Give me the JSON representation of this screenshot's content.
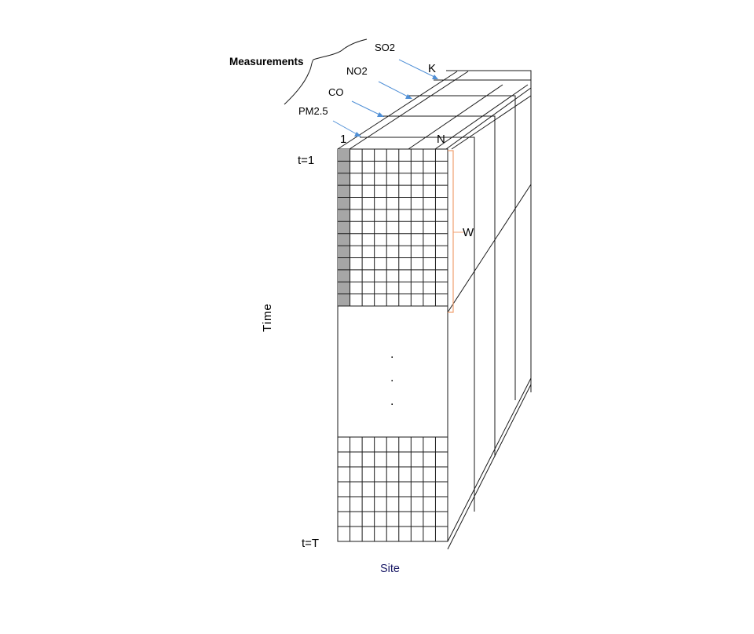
{
  "labels": {
    "measurements": "Measurements",
    "layer_so2": "SO2",
    "layer_no2": "NO2",
    "layer_co": "CO",
    "layer_pm25": "PM2.5",
    "layer_k": "K",
    "site_first": "1",
    "site_last": "N",
    "time_first": "t=1",
    "time_last": "t=T",
    "window": "W",
    "time_axis": "Time",
    "site_axis": "Site",
    "ellipsis_dot": "."
  },
  "colors": {
    "arrow": "#4f8fd6",
    "window_bracket": "#f0a070",
    "highlight_column": "#a6a6a6",
    "lines": "#1a1a1a",
    "site_label": "#1a1a66"
  },
  "structure": {
    "site_columns": 9,
    "window_rows": 13,
    "bottom_rows": 7,
    "measurement_layers": 4
  }
}
